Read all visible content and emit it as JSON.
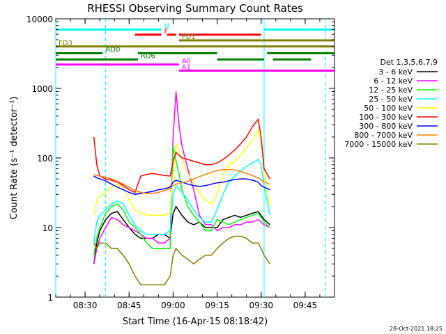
{
  "chart_data": {
    "type": "line",
    "title": "RHESSI Observing Summary Count Rates",
    "xlabel": "Start Time (16-Apr-15 08:18:42)",
    "ylabel": "Count Rate (s⁻¹ detector⁻¹)",
    "yscale": "log",
    "ylim": [
      1,
      10000
    ],
    "xlim_minutes_after_0800": [
      20,
      115
    ],
    "x_ticks": [
      {
        "label": "08:30",
        "minute": 30
      },
      {
        "label": "08:45",
        "minute": 45
      },
      {
        "label": "09:00",
        "minute": 60
      },
      {
        "label": "09:15",
        "minute": 75
      },
      {
        "label": "09:30",
        "minute": 90
      },
      {
        "label": "09:45",
        "minute": 105
      }
    ],
    "y_ticks": [
      {
        "label": "1",
        "value": 1
      },
      {
        "label": "10",
        "value": 10
      },
      {
        "label": "100",
        "value": 100
      },
      {
        "label": "1000",
        "value": 1000
      },
      {
        "label": "10000",
        "value": 10000
      }
    ],
    "legend_title": "Det 1,3,5,6,7,9",
    "legend_placement": "right",
    "series": [
      {
        "name": "3 - 6 keV",
        "color": "#000000",
        "x": [
          33,
          34,
          35,
          37,
          39,
          41,
          43,
          45,
          47,
          49,
          51,
          53,
          55,
          57,
          59,
          60,
          61,
          63,
          65,
          67,
          69,
          71,
          73,
          75,
          77,
          79,
          81,
          83,
          85,
          87,
          89,
          90,
          91,
          93
        ],
        "y": [
          3,
          6,
          9,
          13,
          16,
          17,
          13,
          10,
          8,
          7,
          7,
          7,
          8,
          8,
          7,
          16,
          20,
          15,
          12,
          11,
          12,
          10,
          10,
          10,
          13,
          14,
          15,
          14,
          15,
          16,
          17,
          15,
          13,
          11
        ]
      },
      {
        "name": "6 - 12 keV",
        "color": "#ff00ff",
        "x": [
          33,
          34,
          35,
          37,
          39,
          41,
          43,
          45,
          47,
          49,
          51,
          53,
          55,
          57,
          59,
          60,
          61,
          62,
          63,
          65,
          67,
          69,
          71,
          73,
          75,
          77,
          79,
          81,
          83,
          85,
          87,
          89,
          90,
          91,
          93
        ],
        "y": [
          3,
          5,
          7,
          10,
          14,
          13,
          11,
          10,
          9,
          8,
          7,
          7,
          6,
          6,
          7,
          200,
          900,
          300,
          150,
          70,
          35,
          15,
          11,
          11,
          9,
          10,
          10,
          11,
          11,
          12,
          12,
          13,
          12,
          11,
          10
        ]
      },
      {
        "name": "12 - 25 keV",
        "color": "#00ff00",
        "x": [
          33,
          34,
          35,
          37,
          39,
          41,
          43,
          45,
          47,
          49,
          51,
          53,
          55,
          57,
          59,
          60,
          61,
          62,
          63,
          65,
          67,
          69,
          71,
          73,
          75,
          77,
          79,
          81,
          83,
          85,
          87,
          89,
          90,
          91,
          93
        ],
        "y": [
          4,
          7,
          10,
          16,
          20,
          22,
          18,
          12,
          10,
          8,
          6,
          5,
          5,
          5,
          5,
          150,
          90,
          60,
          35,
          20,
          15,
          12,
          9,
          9,
          13,
          12,
          11,
          12,
          13,
          14,
          15,
          16,
          14,
          12,
          10
        ]
      },
      {
        "name": "25 - 50 keV",
        "color": "#00ffff",
        "x": [
          33,
          34,
          35,
          37,
          39,
          41,
          43,
          45,
          47,
          49,
          51,
          53,
          55,
          57,
          59,
          60,
          61,
          63,
          65,
          67,
          69,
          71,
          73,
          75,
          77,
          79,
          81,
          83,
          85,
          87,
          89,
          90,
          91,
          93
        ],
        "y": [
          6,
          12,
          15,
          18,
          22,
          24,
          22,
          15,
          11,
          9,
          8,
          8,
          8,
          8,
          9,
          30,
          40,
          32,
          25,
          18,
          14,
          12,
          12,
          18,
          30,
          45,
          55,
          65,
          75,
          85,
          95,
          80,
          40,
          15
        ]
      },
      {
        "name": "50 - 100 keV",
        "color": "#ffff00",
        "x": [
          33,
          34,
          35,
          37,
          39,
          41,
          43,
          45,
          47,
          49,
          51,
          53,
          55,
          57,
          59,
          60,
          61,
          63,
          65,
          67,
          69,
          71,
          73,
          75,
          77,
          79,
          81,
          83,
          85,
          87,
          89,
          90,
          91,
          93
        ],
        "y": [
          15,
          25,
          28,
          32,
          38,
          42,
          38,
          25,
          18,
          16,
          15,
          15,
          15,
          15,
          16,
          60,
          160,
          100,
          60,
          45,
          32,
          25,
          22,
          30,
          60,
          80,
          90,
          110,
          140,
          180,
          250,
          180,
          60,
          20
        ]
      },
      {
        "name": "100 - 300 keV",
        "color": "#ff0000",
        "x": [
          33,
          34,
          35,
          37,
          39,
          41,
          43,
          45,
          47,
          49,
          51,
          53,
          55,
          57,
          59,
          60,
          61,
          63,
          65,
          67,
          69,
          71,
          73,
          75,
          77,
          79,
          81,
          83,
          85,
          87,
          89,
          90,
          91,
          93
        ],
        "y": [
          200,
          80,
          55,
          50,
          48,
          45,
          40,
          35,
          32,
          55,
          58,
          60,
          58,
          56,
          55,
          90,
          120,
          100,
          95,
          90,
          85,
          80,
          80,
          85,
          95,
          110,
          130,
          160,
          200,
          280,
          360,
          200,
          70,
          50
        ]
      },
      {
        "name": "300 - 800 keV",
        "color": "#0000ff",
        "x": [
          33,
          34,
          35,
          37,
          39,
          41,
          43,
          45,
          47,
          49,
          51,
          53,
          55,
          57,
          59,
          60,
          61,
          63,
          65,
          67,
          69,
          71,
          73,
          75,
          77,
          79,
          81,
          83,
          85,
          87,
          89,
          90,
          91,
          93
        ],
        "y": [
          55,
          52,
          50,
          47,
          42,
          38,
          35,
          32,
          30,
          31,
          32,
          33,
          35,
          36,
          38,
          45,
          48,
          45,
          42,
          40,
          39,
          40,
          42,
          44,
          45,
          47,
          49,
          50,
          50,
          48,
          45,
          40,
          38,
          35
        ]
      },
      {
        "name": "800 - 7000 keV",
        "color": "#ff8000",
        "x": [
          33,
          34,
          35,
          37,
          39,
          41,
          43,
          45,
          47,
          49,
          51,
          53,
          55,
          57,
          59,
          60,
          61,
          63,
          65,
          67,
          69,
          71,
          73,
          75,
          77,
          79,
          81,
          83,
          85,
          87,
          89,
          90,
          91,
          93
        ],
        "y": [
          58,
          56,
          55,
          53,
          50,
          46,
          42,
          38,
          34,
          32,
          31,
          31,
          32,
          34,
          36,
          40,
          42,
          44,
          46,
          50,
          54,
          58,
          62,
          66,
          68,
          68,
          67,
          64,
          60,
          56,
          52,
          48,
          45,
          42
        ]
      },
      {
        "name": "7000 - 15000 keV",
        "color": "#808000",
        "x": [
          33,
          34,
          35,
          37,
          39,
          41,
          43,
          45,
          47,
          49,
          51,
          53,
          55,
          57,
          59,
          60,
          61,
          63,
          65,
          67,
          69,
          71,
          73,
          75,
          77,
          79,
          81,
          83,
          85,
          87,
          89,
          90,
          91,
          93
        ],
        "y": [
          6,
          5,
          6,
          6,
          5,
          5,
          4,
          3,
          2,
          1.5,
          1.5,
          1.5,
          1.5,
          1.5,
          2,
          4,
          5,
          4,
          3.5,
          3,
          3.5,
          4,
          4,
          5,
          6,
          7,
          7.5,
          7.5,
          7,
          6,
          6,
          5,
          4,
          3
        ]
      }
    ],
    "flag_bars": [
      {
        "label": "N",
        "color": "#00ffff",
        "value": 7000,
        "segments": [
          [
            20,
            56
          ],
          [
            91,
            115
          ]
        ]
      },
      {
        "label": "F",
        "color": "#ff0000",
        "value": 5900,
        "segments": [
          [
            47,
            56
          ],
          [
            58,
            61
          ],
          [
            62,
            90
          ]
        ]
      },
      {
        "label": "FD1",
        "color": "#808000",
        "value": 4900,
        "segments": [
          [
            62,
            115
          ]
        ]
      },
      {
        "label": "FD3",
        "color": "#808000",
        "value": 4000,
        "segments": [
          [
            20,
            115
          ]
        ]
      },
      {
        "label": "RD0",
        "color": "#008000",
        "value": 3200,
        "segments": [
          [
            20,
            36
          ],
          [
            48,
            75
          ],
          [
            92,
            115
          ]
        ]
      },
      {
        "label": "RD6",
        "color": "#008000",
        "value": 2600,
        "segments": [
          [
            20,
            48
          ],
          [
            75,
            91
          ],
          [
            94,
            107
          ]
        ]
      },
      {
        "label": "A0",
        "color": "#ff00ff",
        "value": 2200,
        "segments": [
          [
            20,
            62
          ]
        ]
      },
      {
        "label": "A1",
        "color": "#ff00ff",
        "value": 1800,
        "segments": [
          [
            62,
            115
          ]
        ]
      }
    ],
    "vertical_markers": [
      {
        "minute": 20,
        "style": "solid",
        "color": "#00ffff"
      },
      {
        "minute": 37,
        "style": "dashed",
        "color": "#00ffff"
      },
      {
        "minute": 91,
        "style": "solid",
        "color": "#00ffff"
      },
      {
        "minute": 112,
        "style": "dashed",
        "color": "#00ffff"
      }
    ]
  },
  "footer": {
    "timestamp": "28-Oct-2021 18:25"
  }
}
